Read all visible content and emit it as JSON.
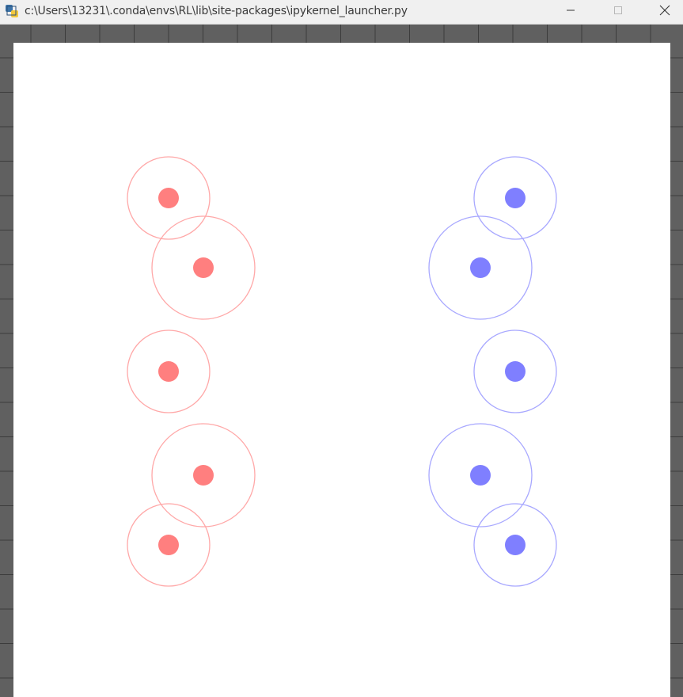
{
  "window": {
    "title": "c:\\Users\\13231\\.conda\\envs\\RL\\lib\\site-packages\\ipykernel_launcher.py",
    "icon": "python-icon",
    "controls": [
      "minimize-icon",
      "maximize-icon",
      "close-icon"
    ]
  },
  "scene": {
    "colors": {
      "red_fill": "#ff7f7f",
      "red_ring": "#ffa8a8",
      "blue_fill": "#7f7fff",
      "blue_ring": "#a8a8ff",
      "canvas": "#ffffff",
      "grid_bg": "#606060",
      "grid_line": "#3c3c3c"
    },
    "red_team": {
      "agent_count": 5
    },
    "blue_team": {
      "agent_count": 5
    }
  }
}
